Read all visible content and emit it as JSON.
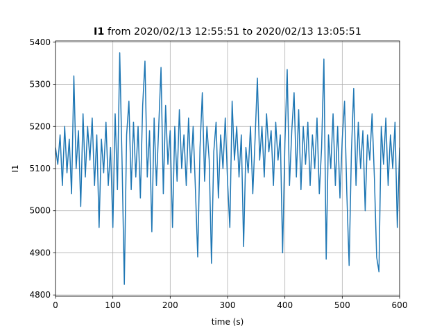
{
  "chart_data": {
    "type": "line",
    "title_bold": "I1",
    "title": "from 2020/02/13 12:55:51 to 2020/02/13 13:05:51",
    "x_label": "time (s)",
    "y_label": "I1",
    "xlim": [
      0,
      600
    ],
    "xticks": [
      0,
      100,
      200,
      300,
      400,
      500,
      600
    ],
    "ylim": [
      4797,
      5403
    ],
    "yticks": [
      4800,
      4900,
      5000,
      5100,
      5200,
      5300,
      5400
    ],
    "grid": true,
    "x": [
      0,
      4,
      8,
      12,
      16,
      20,
      24,
      28,
      32,
      36,
      40,
      44,
      48,
      52,
      56,
      60,
      64,
      68,
      72,
      76,
      80,
      84,
      88,
      92,
      96,
      100,
      104,
      108,
      112,
      116,
      120,
      124,
      128,
      132,
      136,
      140,
      144,
      148,
      152,
      156,
      160,
      164,
      168,
      172,
      176,
      180,
      184,
      188,
      192,
      196,
      200,
      204,
      208,
      212,
      216,
      220,
      224,
      228,
      232,
      236,
      240,
      244,
      248,
      252,
      256,
      260,
      264,
      268,
      272,
      276,
      280,
      284,
      288,
      292,
      296,
      300,
      304,
      308,
      312,
      316,
      320,
      324,
      328,
      332,
      336,
      340,
      344,
      348,
      352,
      356,
      360,
      364,
      368,
      372,
      376,
      380,
      384,
      388,
      392,
      396,
      400,
      404,
      408,
      412,
      416,
      420,
      424,
      428,
      432,
      436,
      440,
      444,
      448,
      452,
      456,
      460,
      464,
      468,
      472,
      476,
      480,
      484,
      488,
      492,
      496,
      500,
      504,
      508,
      512,
      516,
      520,
      524,
      528,
      532,
      536,
      540,
      544,
      548,
      552,
      556,
      560,
      564,
      568,
      572,
      576,
      580,
      584,
      588,
      592,
      596,
      600
    ],
    "series": [
      {
        "color": "#1f77b4",
        "values": [
          5150,
          5110,
          5180,
          5060,
          5200,
          5090,
          5170,
          5040,
          5320,
          5100,
          5190,
          5010,
          5230,
          5080,
          5200,
          5120,
          5220,
          5060,
          5180,
          4960,
          5170,
          5090,
          5210,
          5060,
          5150,
          4960,
          5230,
          5050,
          5375,
          5120,
          4825,
          5180,
          5260,
          5050,
          5210,
          5080,
          5200,
          5030,
          5250,
          5355,
          5080,
          5190,
          4950,
          5220,
          5060,
          5200,
          5340,
          5040,
          5250,
          5110,
          5190,
          4960,
          5200,
          5070,
          5240,
          5100,
          5180,
          5060,
          5220,
          5090,
          5200,
          5050,
          4890,
          5150,
          5280,
          5070,
          5200,
          5120,
          4875,
          5140,
          5210,
          5030,
          5180,
          5100,
          5220,
          5070,
          4960,
          5260,
          5120,
          5200,
          5080,
          5180,
          4915,
          5150,
          5090,
          5200,
          5040,
          5170,
          5315,
          5120,
          5200,
          5080,
          5230,
          5140,
          5190,
          5060,
          5210,
          5120,
          5180,
          4900,
          5160,
          5335,
          5060,
          5190,
          5280,
          5080,
          5240,
          5050,
          5200,
          5110,
          5210,
          5060,
          5180,
          5100,
          5220,
          5040,
          5150,
          5360,
          4885,
          5180,
          5100,
          5230,
          5060,
          5200,
          5030,
          5170,
          5260,
          5040,
          4870,
          5140,
          5290,
          5060,
          5210,
          5100,
          5190,
          5000,
          5180,
          5120,
          5230,
          5080,
          4890,
          4855,
          5200,
          5110,
          5220,
          5060,
          5180,
          5100,
          5210,
          4960,
          5150
        ]
      }
    ]
  }
}
